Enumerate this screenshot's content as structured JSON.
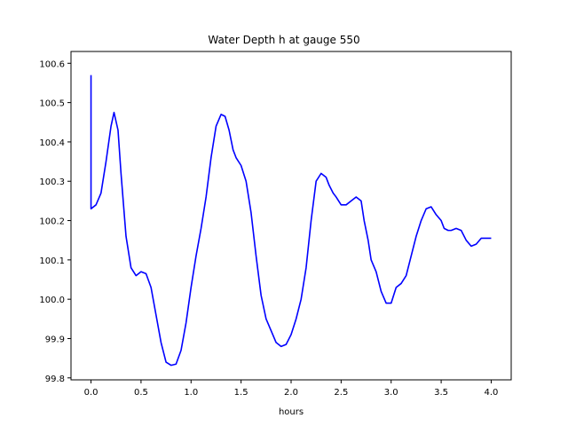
{
  "chart_data": {
    "type": "line",
    "title": "Water Depth h at gauge 550",
    "xlabel": "hours",
    "ylabel": "",
    "xlim": [
      -0.2,
      4.2
    ],
    "ylim": [
      99.795,
      100.63
    ],
    "grid": false,
    "xticks": [
      0.0,
      0.5,
      1.0,
      1.5,
      2.0,
      2.5,
      3.0,
      3.5,
      4.0
    ],
    "xtick_labels": [
      "0.0",
      "0.5",
      "1.0",
      "1.5",
      "2.0",
      "2.5",
      "3.0",
      "3.5",
      "4.0"
    ],
    "yticks": [
      99.8,
      99.9,
      100.0,
      100.1,
      100.2,
      100.3,
      100.4,
      100.5,
      100.6
    ],
    "ytick_labels": [
      "99.8",
      "99.9",
      "100.0",
      "100.1",
      "100.2",
      "100.3",
      "100.4",
      "100.5",
      "100.6"
    ],
    "series": [
      {
        "color": "#0000ff",
        "x": [
          0.0,
          0.0,
          0.0,
          0.05,
          0.1,
          0.15,
          0.2,
          0.23,
          0.27,
          0.3,
          0.35,
          0.4,
          0.45,
          0.5,
          0.55,
          0.6,
          0.65,
          0.7,
          0.75,
          0.8,
          0.85,
          0.9,
          0.95,
          1.0,
          1.05,
          1.1,
          1.15,
          1.2,
          1.25,
          1.3,
          1.34,
          1.38,
          1.42,
          1.45,
          1.5,
          1.55,
          1.6,
          1.65,
          1.7,
          1.75,
          1.8,
          1.85,
          1.9,
          1.95,
          2.0,
          2.05,
          2.1,
          2.15,
          2.2,
          2.25,
          2.3,
          2.35,
          2.38,
          2.42,
          2.45,
          2.5,
          2.55,
          2.6,
          2.65,
          2.7,
          2.73,
          2.77,
          2.8,
          2.85,
          2.9,
          2.95,
          3.0,
          3.05,
          3.1,
          3.15,
          3.2,
          3.25,
          3.3,
          3.35,
          3.4,
          3.45,
          3.5,
          3.53,
          3.57,
          3.6,
          3.65,
          3.7,
          3.75,
          3.8,
          3.85,
          3.9,
          3.95,
          4.0
        ],
        "y": [
          100.57,
          100.57,
          100.23,
          100.24,
          100.27,
          100.35,
          100.44,
          100.475,
          100.43,
          100.32,
          100.16,
          100.08,
          100.06,
          100.07,
          100.065,
          100.03,
          99.96,
          99.89,
          99.84,
          99.832,
          99.835,
          99.87,
          99.94,
          100.03,
          100.11,
          100.18,
          100.26,
          100.36,
          100.44,
          100.47,
          100.465,
          100.43,
          100.38,
          100.36,
          100.34,
          100.3,
          100.22,
          100.11,
          100.01,
          99.95,
          99.92,
          99.89,
          99.88,
          99.885,
          99.91,
          99.95,
          100.0,
          100.08,
          100.2,
          100.3,
          100.32,
          100.31,
          100.29,
          100.27,
          100.26,
          100.24,
          100.24,
          100.25,
          100.26,
          100.25,
          100.2,
          100.15,
          100.1,
          100.07,
          100.02,
          99.99,
          99.99,
          100.03,
          100.04,
          100.06,
          100.11,
          100.16,
          100.2,
          100.23,
          100.235,
          100.215,
          100.2,
          100.18,
          100.175,
          100.175,
          100.18,
          100.175,
          100.15,
          100.135,
          100.14,
          100.155,
          100.155,
          100.155
        ]
      }
    ]
  }
}
